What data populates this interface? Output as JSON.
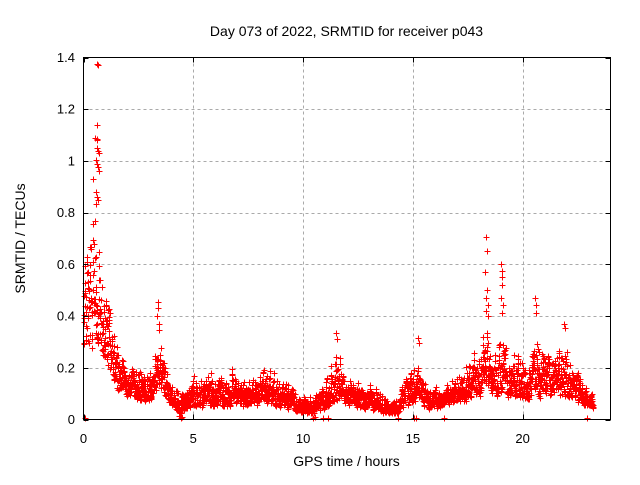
{
  "chart_data": {
    "type": "scatter",
    "title": "Day 073 of 2022, SRMTID for receiver p043",
    "xlabel": "GPS time / hours",
    "ylabel": "SRMTID / TECUs",
    "xlim": [
      0,
      24
    ],
    "ylim": [
      0,
      1.4
    ],
    "xticks": {
      "values": [
        0,
        5,
        10,
        15,
        20
      ],
      "labels": [
        "0",
        "5",
        "10",
        "15",
        "20"
      ]
    },
    "yticks": {
      "values": [
        0,
        0.2,
        0.4,
        0.6,
        0.8,
        1.0,
        1.2,
        1.4
      ],
      "labels": [
        "0",
        "0.2",
        "0.4",
        "0.6",
        "0.8",
        "1",
        "1.2",
        "1.4"
      ]
    },
    "grid": {
      "on": true,
      "color": "#aaaaaa",
      "dash": "3,3"
    },
    "legend": "none",
    "marker": {
      "shape": "plus",
      "size": 7,
      "color": "#ff0000",
      "stroke_width": 1
    },
    "colors": {
      "point": "#ff0000",
      "axis": "#000000",
      "background": "#ffffff"
    },
    "description": "Dense time series of SRMTID values sampled every 30 s; large spike near 0.6 h reaching 1.37 TECUs, secondary spikes near 3.4 h (0.46), 11.5 h (0.33), 15.2 h (0.32), 18.3 h (0.70), 19.0 h (0.60), 20.6 h (0.47), 21.9 h (0.37); baseline mostly 0.05-0.2 TECUs, data ending near 23.2 h",
    "sampling": {
      "start": 0.0,
      "end": 23.2,
      "step": 0.008333
    },
    "seed": 20220073,
    "skew": 1.7,
    "smooth": 0.45,
    "envelope": [
      [
        0.0,
        0.2,
        0.82
      ],
      [
        0.3,
        0.25,
        0.85
      ],
      [
        0.5,
        0.28,
        1.0
      ],
      [
        0.7,
        0.28,
        0.95
      ],
      [
        0.9,
        0.22,
        0.7
      ],
      [
        1.1,
        0.18,
        0.5
      ],
      [
        1.3,
        0.14,
        0.4
      ],
      [
        1.6,
        0.1,
        0.3
      ],
      [
        2.0,
        0.08,
        0.24
      ],
      [
        2.5,
        0.07,
        0.22
      ],
      [
        3.0,
        0.07,
        0.2
      ],
      [
        3.3,
        0.1,
        0.32
      ],
      [
        3.5,
        0.12,
        0.35
      ],
      [
        3.7,
        0.08,
        0.25
      ],
      [
        4.0,
        0.05,
        0.18
      ],
      [
        4.4,
        0.02,
        0.12
      ],
      [
        4.8,
        0.04,
        0.16
      ],
      [
        5.2,
        0.05,
        0.2
      ],
      [
        5.6,
        0.04,
        0.22
      ],
      [
        6.0,
        0.05,
        0.24
      ],
      [
        6.4,
        0.04,
        0.18
      ],
      [
        6.8,
        0.05,
        0.22
      ],
      [
        7.2,
        0.04,
        0.18
      ],
      [
        7.6,
        0.05,
        0.2
      ],
      [
        8.0,
        0.05,
        0.22
      ],
      [
        8.3,
        0.06,
        0.28
      ],
      [
        8.6,
        0.05,
        0.22
      ],
      [
        9.0,
        0.04,
        0.18
      ],
      [
        9.5,
        0.04,
        0.16
      ],
      [
        10.0,
        0.02,
        0.12
      ],
      [
        10.5,
        0.02,
        0.11
      ],
      [
        11.0,
        0.04,
        0.16
      ],
      [
        11.5,
        0.06,
        0.3
      ],
      [
        11.8,
        0.06,
        0.24
      ],
      [
        12.2,
        0.05,
        0.2
      ],
      [
        12.6,
        0.04,
        0.17
      ],
      [
        13.0,
        0.04,
        0.17
      ],
      [
        13.4,
        0.03,
        0.13
      ],
      [
        13.8,
        0.02,
        0.1
      ],
      [
        14.2,
        0.02,
        0.09
      ],
      [
        14.6,
        0.04,
        0.16
      ],
      [
        15.0,
        0.06,
        0.26
      ],
      [
        15.3,
        0.06,
        0.3
      ],
      [
        15.6,
        0.04,
        0.15
      ],
      [
        16.0,
        0.04,
        0.16
      ],
      [
        16.4,
        0.05,
        0.16
      ],
      [
        16.8,
        0.06,
        0.2
      ],
      [
        17.2,
        0.06,
        0.22
      ],
      [
        17.6,
        0.07,
        0.28
      ],
      [
        18.0,
        0.08,
        0.32
      ],
      [
        18.35,
        0.1,
        0.4
      ],
      [
        18.7,
        0.08,
        0.28
      ],
      [
        19.05,
        0.1,
        0.38
      ],
      [
        19.4,
        0.08,
        0.26
      ],
      [
        19.8,
        0.08,
        0.32
      ],
      [
        20.2,
        0.06,
        0.22
      ],
      [
        20.6,
        0.08,
        0.38
      ],
      [
        21.0,
        0.08,
        0.3
      ],
      [
        21.4,
        0.08,
        0.27
      ],
      [
        21.9,
        0.08,
        0.33
      ],
      [
        22.3,
        0.06,
        0.24
      ],
      [
        22.7,
        0.05,
        0.18
      ],
      [
        23.0,
        0.05,
        0.14
      ],
      [
        23.2,
        0.04,
        0.12
      ]
    ],
    "outliers": [
      [
        0.6,
        1.375
      ],
      [
        0.645,
        1.37
      ],
      [
        0.6,
        1.14
      ],
      [
        0.52,
        1.09
      ],
      [
        0.6,
        1.085
      ],
      [
        0.635,
        1.08
      ],
      [
        0.62,
        1.05
      ],
      [
        0.665,
        1.04
      ],
      [
        0.7,
        1.03
      ],
      [
        0.575,
        1.005
      ],
      [
        0.62,
        0.99
      ],
      [
        0.66,
        0.975
      ],
      [
        0.7,
        0.96
      ],
      [
        0.42,
        0.93
      ],
      [
        0.55,
        0.88
      ],
      [
        0.6,
        0.862
      ],
      [
        0.64,
        0.85
      ],
      [
        0.57,
        0.832
      ],
      [
        3.38,
        0.455
      ],
      [
        3.405,
        0.43
      ],
      [
        3.37,
        0.4
      ],
      [
        3.42,
        0.37
      ],
      [
        3.44,
        0.345
      ],
      [
        11.52,
        0.335
      ],
      [
        11.55,
        0.31
      ],
      [
        15.22,
        0.315
      ],
      [
        15.26,
        0.295
      ],
      [
        18.33,
        0.705
      ],
      [
        18.36,
        0.65
      ],
      [
        18.3,
        0.572
      ],
      [
        18.38,
        0.5
      ],
      [
        18.35,
        0.47
      ],
      [
        18.4,
        0.443
      ],
      [
        18.32,
        0.42
      ],
      [
        18.42,
        0.4
      ],
      [
        19.03,
        0.6
      ],
      [
        19.06,
        0.575
      ],
      [
        19.05,
        0.55
      ],
      [
        19.08,
        0.52
      ],
      [
        19.02,
        0.47
      ],
      [
        19.1,
        0.443
      ],
      [
        19.07,
        0.41
      ],
      [
        20.58,
        0.468
      ],
      [
        20.6,
        0.443
      ],
      [
        20.62,
        0.412
      ],
      [
        21.88,
        0.37
      ],
      [
        21.92,
        0.352
      ],
      [
        0.08,
        0.004
      ],
      [
        4.36,
        0.012
      ],
      [
        4.42,
        0.006
      ],
      [
        4.5,
        0.01
      ],
      [
        10.46,
        0.006
      ],
      [
        10.55,
        0.01
      ],
      [
        10.92,
        0.004
      ],
      [
        11.15,
        0.006
      ],
      [
        14.32,
        0.004
      ],
      [
        15.05,
        0.005
      ],
      [
        15.12,
        0.007
      ],
      [
        16.42,
        0.005
      ],
      [
        22.92,
        0.004
      ]
    ]
  }
}
